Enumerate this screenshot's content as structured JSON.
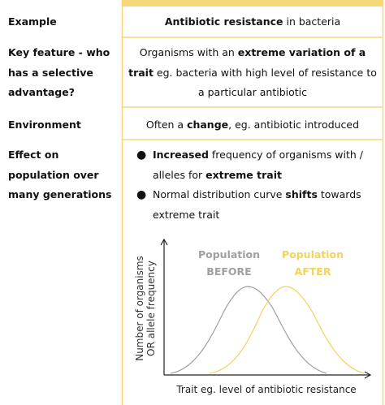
{
  "table": {
    "rows": [
      {
        "label": "Example",
        "content": [
          {
            "text": "Antibiotic resistance",
            "bold": true
          },
          {
            "text": " in bacteria",
            "bold": false
          }
        ]
      },
      {
        "label": "Key feature  - who has a selective advantage?",
        "content": [
          {
            "text": "Organisms with an ",
            "bold": false
          },
          {
            "text": "extreme variation of a trait",
            "bold": true
          },
          {
            "text": " eg. bacteria with high level of resistance to a particular antibiotic",
            "bold": false
          }
        ]
      },
      {
        "label": "Environment",
        "content": [
          {
            "text": "Often a ",
            "bold": false
          },
          {
            "text": "change",
            "bold": true
          },
          {
            "text": ", eg. antibiotic introduced",
            "bold": false
          }
        ]
      },
      {
        "label": "Effect on population over many generations",
        "bullets": [
          [
            {
              "text": "Increased",
              "bold": true
            },
            {
              "text": " frequency of organisms with / alleles for ",
              "bold": false
            },
            {
              "text": "extreme trait",
              "bold": true
            }
          ],
          [
            {
              "text": "Normal distribution curve ",
              "bold": false
            },
            {
              "text": "shifts",
              "bold": true
            },
            {
              "text": " towards extreme trait",
              "bold": false
            }
          ]
        ]
      }
    ]
  },
  "diagram": {
    "y_label": [
      "Number of organisms",
      "OR allele frequency"
    ],
    "x_label": "Trait eg. level of antibiotic resistance",
    "before_label": [
      "Population",
      "BEFORE"
    ],
    "after_label": [
      "Population",
      "AFTER"
    ]
  }
}
